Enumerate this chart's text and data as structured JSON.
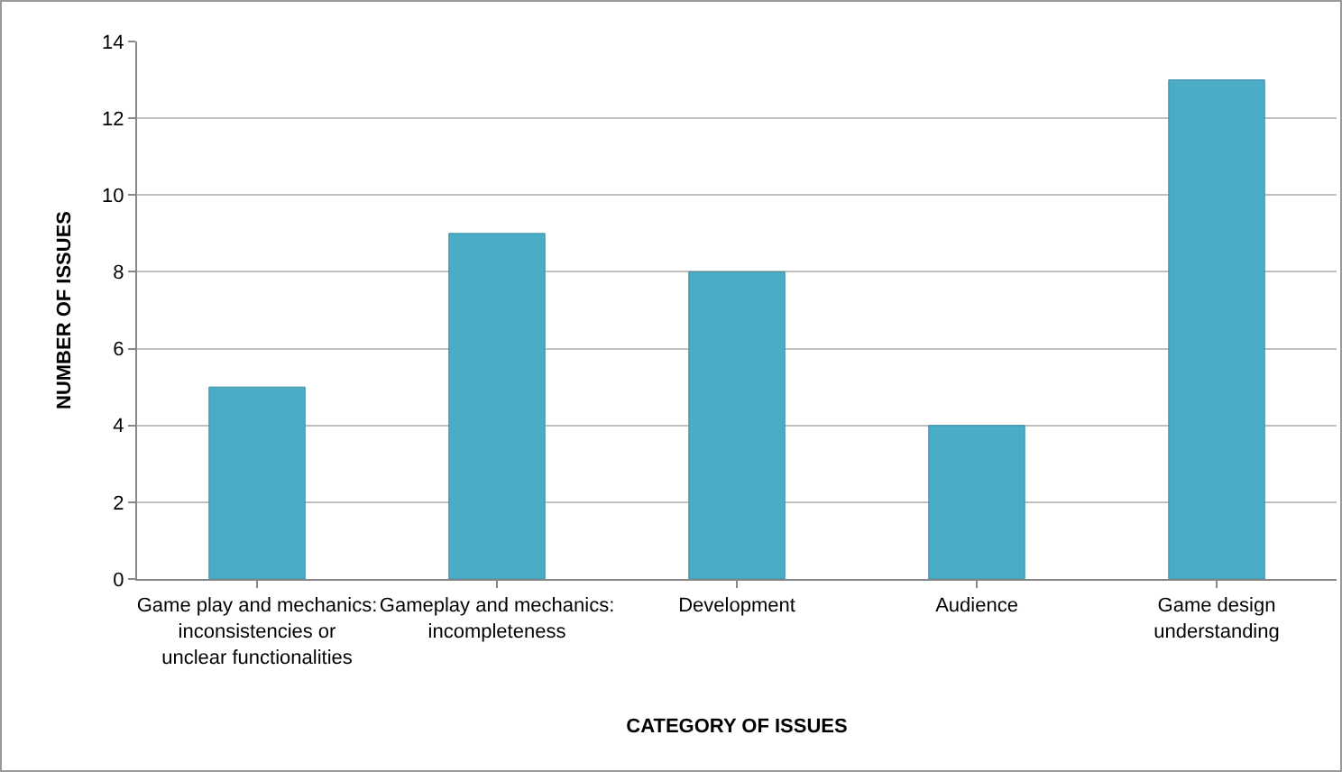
{
  "chart_data": {
    "type": "bar",
    "xlabel": "CATEGORY OF ISSUES",
    "ylabel": "NUMBER OF ISSUES",
    "categories": [
      "Game play and mechanics: inconsistencies or unclear functionalities",
      "Gameplay and mechanics: incompleteness",
      "Development",
      "Audience",
      "Game design understanding"
    ],
    "values": [
      5,
      9,
      8,
      4,
      13
    ],
    "color": "#4bacc6",
    "ylim": [
      0,
      14
    ],
    "yticks": [
      0,
      2,
      4,
      6,
      8,
      10,
      12,
      14
    ],
    "grid": "y"
  }
}
